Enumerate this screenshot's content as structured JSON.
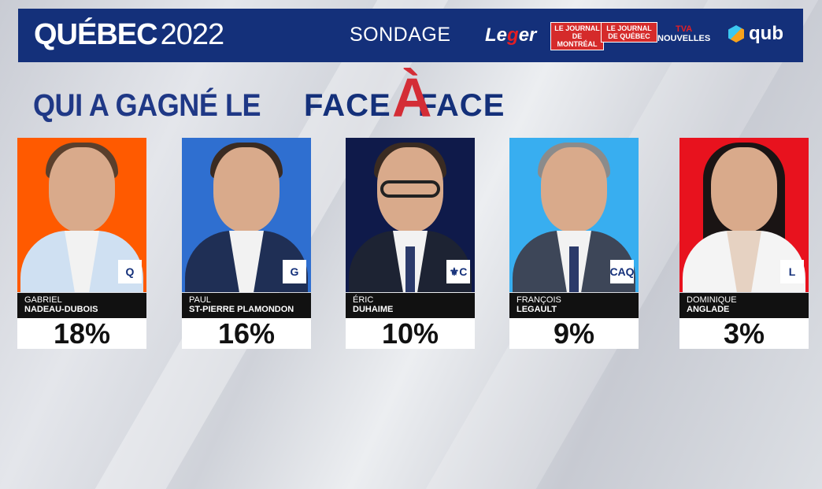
{
  "header": {
    "brand_bold": "QUÉBEC",
    "brand_year": "2022",
    "sondage": "SONDAGE",
    "logos": {
      "leger_pre": "Le",
      "leger_g": "g",
      "leger_post": "er",
      "journal_mtl": "LE JOURNAL DE MONTRÉAL",
      "journal_qc": "LE JOURNAL DE QUÉBEC",
      "tva_line1": "TVA",
      "tva_line2": "NOUVELLES",
      "qub": "qub"
    }
  },
  "headline": {
    "question": "QUI A GAGNÉ LE",
    "face_left": "FACE",
    "face_a": "À",
    "face_right": "FACE"
  },
  "candidates": [
    {
      "first": "GABRIEL",
      "last": "NADEAU-DUBOIS",
      "percent": "18%",
      "bg": "#ff5a00",
      "suit": "#cfe0f2",
      "party_icon": "qs-logo-icon",
      "party_mark": "Q"
    },
    {
      "first": "PAUL",
      "last": "ST-PIERRE PLAMONDON",
      "percent": "16%",
      "bg": "#2f6fd0",
      "suit": "#1f2f55",
      "party_icon": "pq-logo-icon",
      "party_mark": "G"
    },
    {
      "first": "ÉRIC",
      "last": "DUHAIME",
      "percent": "10%",
      "bg": "#0f1a4a",
      "suit": "#1d2333",
      "party_icon": "pcq-logo-icon",
      "party_mark": "⚜C"
    },
    {
      "first": "FRANÇOIS",
      "last": "LEGAULT",
      "percent": "9%",
      "bg": "#38aef0",
      "suit": "#3d4658",
      "party_icon": "caq-logo-icon",
      "party_mark": "CAQ"
    },
    {
      "first": "DOMINIQUE",
      "last": "ANGLADE",
      "percent": "3%",
      "bg": "#e8121e",
      "suit": "#f4f4f4",
      "party_icon": "plq-logo-icon",
      "party_mark": "L"
    }
  ],
  "colors": {
    "header_blue": "#14307a",
    "accent_red": "#d42d36",
    "headline_blue": "#1f3886"
  }
}
